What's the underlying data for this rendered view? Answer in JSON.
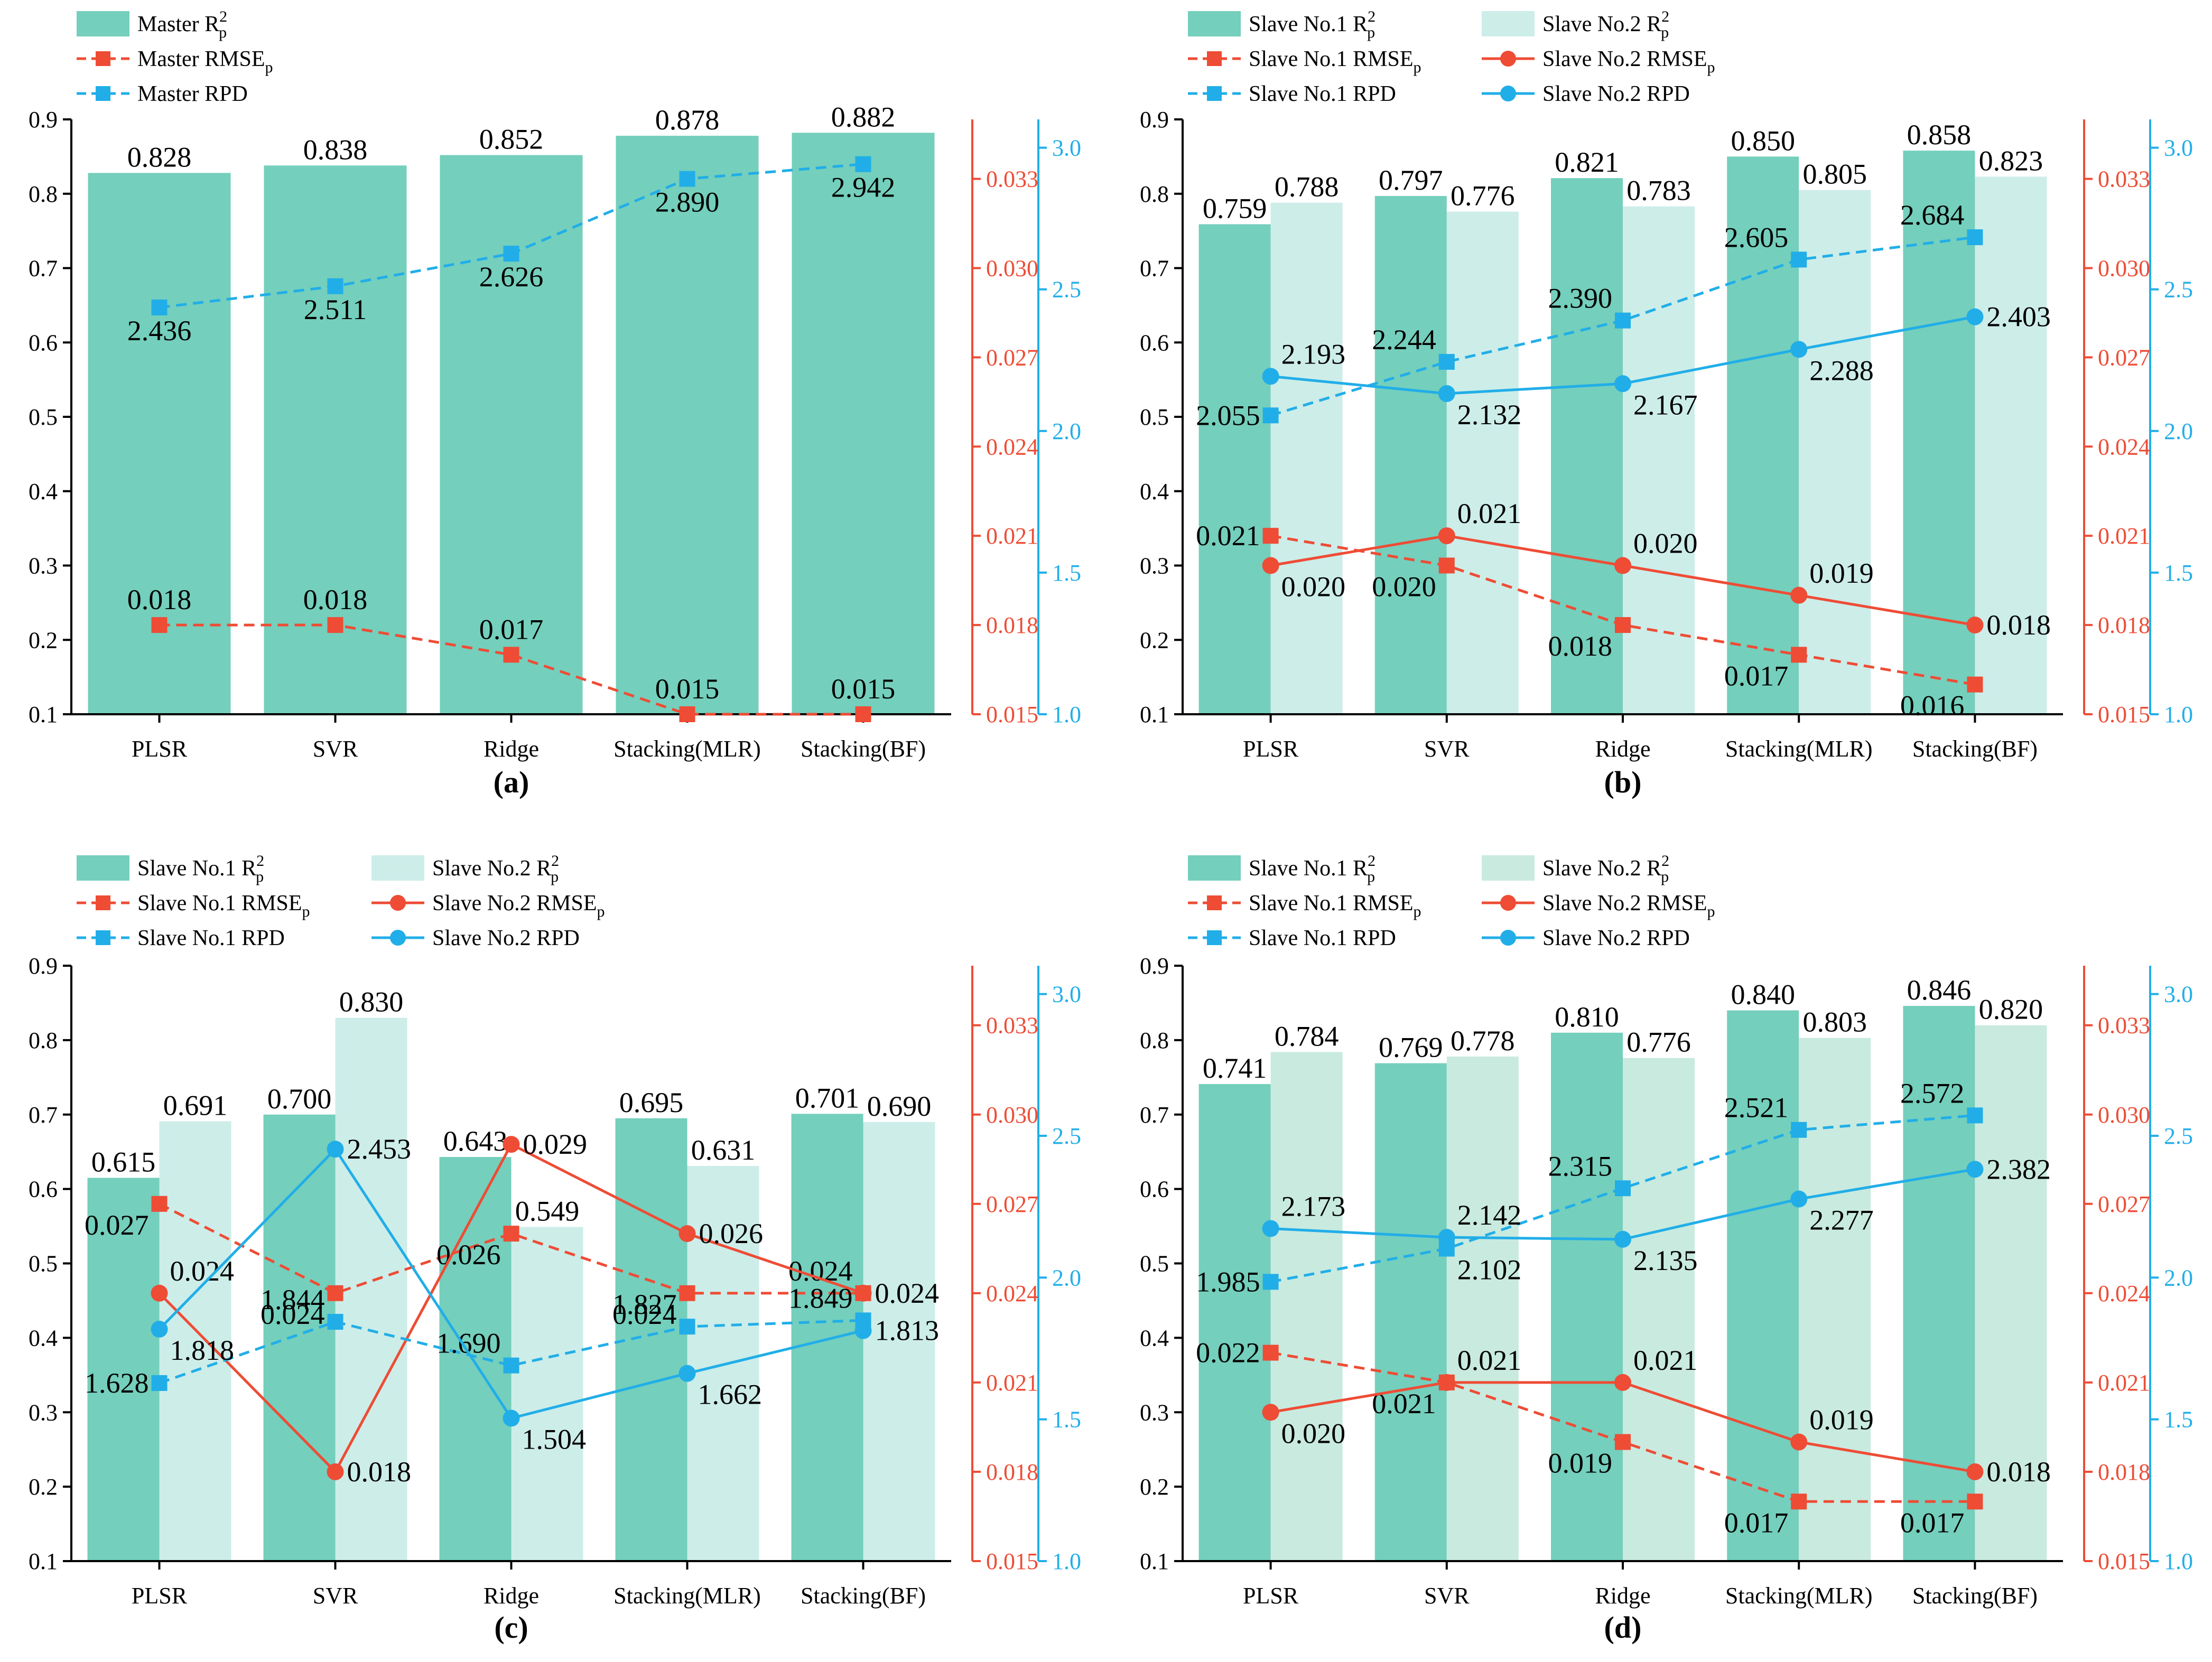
{
  "colors": {
    "teal": "#74CFBC",
    "light_b": "#CDEDE9",
    "light_d": "#C9EADF",
    "red": "#EE4C35",
    "blue": "#21AEE8",
    "axis": "#000000"
  },
  "chart_data": [
    {
      "id": "a",
      "type": "bar+line",
      "panel_label": "(a)",
      "categories": [
        "PLSR",
        "SVR",
        "Ridge",
        "Stacking(MLR)",
        "Stacking(BF)"
      ],
      "left_axis": {
        "range": [
          0.1,
          0.9
        ],
        "ticks": [
          "0.1",
          "0.2",
          "0.3",
          "0.4",
          "0.5",
          "0.6",
          "0.7",
          "0.8",
          "0.9"
        ]
      },
      "rmse_axis": {
        "range": [
          0.015,
          0.035
        ],
        "ticks": [
          "0.015",
          "0.018",
          "0.021",
          "0.024",
          "0.027",
          "0.030",
          "0.033"
        ]
      },
      "rpd_axis": {
        "range": [
          1.0,
          3.1
        ],
        "ticks": [
          "1.0",
          "1.5",
          "2.0",
          "2.5",
          "3.0"
        ]
      },
      "legend": [
        {
          "kind": "bar",
          "color_key": "teal",
          "text": "Master R",
          "sup": "2",
          "sub": "p"
        },
        {
          "kind": "dash-square",
          "color_key": "red",
          "text": "Master RMSE",
          "sup": "",
          "sub": "p"
        },
        {
          "kind": "dash-square",
          "color_key": "blue",
          "text": "Master RPD",
          "sup": "",
          "sub": ""
        }
      ],
      "bars": [
        {
          "name": "Master R2p",
          "color_key": "teal",
          "values": [
            0.828,
            0.838,
            0.852,
            0.878,
            0.882
          ],
          "labels": [
            "0.828",
            "0.838",
            "0.852",
            "0.878",
            "0.882"
          ]
        }
      ],
      "lines": [
        {
          "name": "Master RMSEp",
          "axis": "rmse",
          "color_key": "red",
          "dash": true,
          "marker": "square",
          "values": [
            0.018,
            0.018,
            0.017,
            0.015,
            0.015
          ],
          "labels": [
            "0.018",
            "0.018",
            "0.017",
            "0.015",
            "0.015"
          ],
          "label_pos": "above"
        },
        {
          "name": "Master RPD",
          "axis": "rpd",
          "color_key": "blue",
          "dash": true,
          "marker": "square",
          "values": [
            2.436,
            2.511,
            2.626,
            2.89,
            2.942
          ],
          "labels": [
            "2.436",
            "2.511",
            "2.626",
            "2.890",
            "2.942"
          ],
          "label_pos": "below"
        }
      ]
    },
    {
      "id": "b",
      "type": "bar+line",
      "panel_label": "(b)",
      "categories": [
        "PLSR",
        "SVR",
        "Ridge",
        "Stacking(MLR)",
        "Stacking(BF)"
      ],
      "left_axis": {
        "range": [
          0.1,
          0.9
        ],
        "ticks": [
          "0.1",
          "0.2",
          "0.3",
          "0.4",
          "0.5",
          "0.6",
          "0.7",
          "0.8",
          "0.9"
        ]
      },
      "rmse_axis": {
        "range": [
          0.015,
          0.035
        ],
        "ticks": [
          "0.015",
          "0.018",
          "0.021",
          "0.024",
          "0.027",
          "0.030",
          "0.033"
        ]
      },
      "rpd_axis": {
        "range": [
          1.0,
          3.1
        ],
        "ticks": [
          "1.0",
          "1.5",
          "2.0",
          "2.5",
          "3.0"
        ]
      },
      "legend": [
        {
          "kind": "bar",
          "color_key": "teal",
          "text": "Slave No.1 R",
          "sup": "2",
          "sub": "p"
        },
        {
          "kind": "bar",
          "color_key": "light_b",
          "text": "Slave No.2 R",
          "sup": "2",
          "sub": "p"
        },
        {
          "kind": "dash-square",
          "color_key": "red",
          "text": "Slave No.1 RMSE",
          "sup": "",
          "sub": "p"
        },
        {
          "kind": "solid-circle",
          "color_key": "red",
          "text": "Slave No.2 RMSE",
          "sup": "",
          "sub": "p"
        },
        {
          "kind": "dash-square",
          "color_key": "blue",
          "text": "Slave No.1 RPD",
          "sup": "",
          "sub": ""
        },
        {
          "kind": "solid-circle",
          "color_key": "blue",
          "text": "Slave No.2 RPD",
          "sup": "",
          "sub": ""
        }
      ],
      "bars": [
        {
          "name": "Slave No.1 R2p",
          "color_key": "teal",
          "values": [
            0.759,
            0.797,
            0.821,
            0.85,
            0.858
          ],
          "labels": [
            "0.759",
            "0.797",
            "0.821",
            "0.850",
            "0.858"
          ]
        },
        {
          "name": "Slave No.2 R2p",
          "color_key": "light_b",
          "values": [
            0.788,
            0.776,
            0.783,
            0.805,
            0.823
          ],
          "labels": [
            "0.788",
            "0.776",
            "0.783",
            "0.805",
            "0.823"
          ]
        }
      ],
      "lines": [
        {
          "name": "Slave No.1 RMSEp",
          "axis": "rmse",
          "color_key": "red",
          "dash": true,
          "marker": "square",
          "values": [
            0.021,
            0.02,
            0.018,
            0.017,
            0.016
          ],
          "labels": [
            "0.021",
            "0.020",
            "0.018",
            "0.017",
            "0.016"
          ],
          "label_pos": [
            "left",
            "below-left",
            "below-left",
            "below-left",
            "below-left"
          ]
        },
        {
          "name": "Slave No.2 RMSEp",
          "axis": "rmse",
          "color_key": "red",
          "dash": false,
          "marker": "circle",
          "values": [
            0.02,
            0.021,
            0.02,
            0.019,
            0.018
          ],
          "labels": [
            "0.020",
            "0.021",
            "0.020",
            "0.019",
            "0.018"
          ],
          "label_pos": [
            "below-right",
            "above-right",
            "above-right",
            "above-right",
            "right"
          ]
        },
        {
          "name": "Slave No.1 RPD",
          "axis": "rpd",
          "color_key": "blue",
          "dash": true,
          "marker": "square",
          "values": [
            2.055,
            2.244,
            2.39,
            2.605,
            2.684
          ],
          "labels": [
            "2.055",
            "2.244",
            "2.390",
            "2.605",
            "2.684"
          ],
          "label_pos": [
            "left",
            "above-left",
            "above-left",
            "above-left",
            "above-left"
          ]
        },
        {
          "name": "Slave No.2 RPD",
          "axis": "rpd",
          "color_key": "blue",
          "dash": false,
          "marker": "circle",
          "values": [
            2.193,
            2.132,
            2.167,
            2.288,
            2.403
          ],
          "labels": [
            "2.193",
            "2.132",
            "2.167",
            "2.288",
            "2.403"
          ],
          "label_pos": [
            "above-right",
            "below-right",
            "below-right",
            "below-right",
            "right"
          ]
        }
      ]
    },
    {
      "id": "c",
      "type": "bar+line",
      "panel_label": "(c)",
      "categories": [
        "PLSR",
        "SVR",
        "Ridge",
        "Stacking(MLR)",
        "Stacking(BF)"
      ],
      "left_axis": {
        "range": [
          0.1,
          0.9
        ],
        "ticks": [
          "0.1",
          "0.2",
          "0.3",
          "0.4",
          "0.5",
          "0.6",
          "0.7",
          "0.8",
          "0.9"
        ]
      },
      "rmse_axis": {
        "range": [
          0.015,
          0.035
        ],
        "ticks": [
          "0.015",
          "0.018",
          "0.021",
          "0.024",
          "0.027",
          "0.030",
          "0.033"
        ]
      },
      "rpd_axis": {
        "range": [
          1.0,
          3.1
        ],
        "ticks": [
          "1.0",
          "1.5",
          "2.0",
          "2.5",
          "3.0"
        ]
      },
      "legend": [
        {
          "kind": "bar",
          "color_key": "teal",
          "text": "Slave No.1 R",
          "sup": "2",
          "sub": "p"
        },
        {
          "kind": "bar",
          "color_key": "light_b",
          "text": "Slave No.2 R",
          "sup": "2",
          "sub": "p"
        },
        {
          "kind": "dash-square",
          "color_key": "red",
          "text": "Slave No.1 RMSE",
          "sup": "",
          "sub": "p"
        },
        {
          "kind": "solid-circle",
          "color_key": "red",
          "text": "Slave No.2 RMSE",
          "sup": "",
          "sub": "p"
        },
        {
          "kind": "dash-square",
          "color_key": "blue",
          "text": "Slave No.1 RPD",
          "sup": "",
          "sub": ""
        },
        {
          "kind": "solid-circle",
          "color_key": "blue",
          "text": "Slave No.2 RPD",
          "sup": "",
          "sub": ""
        }
      ],
      "bars": [
        {
          "name": "Slave No.1 R2p",
          "color_key": "teal",
          "values": [
            0.615,
            0.7,
            0.643,
            0.695,
            0.701
          ],
          "labels": [
            "0.615",
            "0.700",
            "0.643",
            "0.695",
            "0.701"
          ]
        },
        {
          "name": "Slave No.2 R2p",
          "color_key": "light_b",
          "values": [
            0.691,
            0.83,
            0.549,
            0.631,
            0.69
          ],
          "labels": [
            "0.691",
            "0.830",
            "0.549",
            "0.631",
            "0.690"
          ]
        }
      ],
      "lines": [
        {
          "name": "Slave No.1 RMSEp",
          "axis": "rmse",
          "color_key": "red",
          "dash": true,
          "marker": "square",
          "values": [
            0.027,
            0.024,
            0.026,
            0.024,
            0.024
          ],
          "labels": [
            "0.027",
            "0.024",
            "0.026",
            "0.024",
            "0.024"
          ],
          "label_pos": [
            "below-left",
            "below-left",
            "below-left",
            "below-left",
            "above-left"
          ]
        },
        {
          "name": "Slave No.2 RMSEp",
          "axis": "rmse",
          "color_key": "red",
          "dash": false,
          "marker": "circle",
          "values": [
            0.024,
            0.018,
            0.029,
            0.026,
            0.024
          ],
          "labels": [
            "0.024",
            "0.018",
            "0.029",
            "0.026",
            "0.024"
          ],
          "label_pos": [
            "above-right",
            "right",
            "right",
            "right",
            "right"
          ]
        },
        {
          "name": "Slave No.1 RPD",
          "axis": "rpd",
          "color_key": "blue",
          "dash": true,
          "marker": "square",
          "values": [
            1.628,
            1.844,
            1.69,
            1.827,
            1.849
          ],
          "labels": [
            "1.628",
            "1.844",
            "1.690",
            "1.827",
            "1.849"
          ],
          "label_pos": [
            "left",
            "above-left",
            "above-left",
            "above-left",
            "above-left"
          ]
        },
        {
          "name": "Slave No.2 RPD",
          "axis": "rpd",
          "color_key": "blue",
          "dash": false,
          "marker": "circle",
          "values": [
            1.818,
            2.453,
            1.504,
            1.662,
            1.813
          ],
          "labels": [
            "1.818",
            "2.453",
            "1.504",
            "1.662",
            "1.813"
          ],
          "label_pos": [
            "below-right",
            "right",
            "below-right",
            "below-right",
            "right"
          ]
        }
      ]
    },
    {
      "id": "d",
      "type": "bar+line",
      "panel_label": "(d)",
      "categories": [
        "PLSR",
        "SVR",
        "Ridge",
        "Stacking(MLR)",
        "Stacking(BF)"
      ],
      "left_axis": {
        "range": [
          0.1,
          0.9
        ],
        "ticks": [
          "0.1",
          "0.2",
          "0.3",
          "0.4",
          "0.5",
          "0.6",
          "0.7",
          "0.8",
          "0.9"
        ]
      },
      "rmse_axis": {
        "range": [
          0.015,
          0.035
        ],
        "ticks": [
          "0.015",
          "0.018",
          "0.021",
          "0.024",
          "0.027",
          "0.030",
          "0.033"
        ]
      },
      "rpd_axis": {
        "range": [
          1.0,
          3.1
        ],
        "ticks": [
          "1.0",
          "1.5",
          "2.0",
          "2.5",
          "3.0"
        ]
      },
      "legend": [
        {
          "kind": "bar",
          "color_key": "teal",
          "text": "Slave No.1 R",
          "sup": "2",
          "sub": "p"
        },
        {
          "kind": "bar",
          "color_key": "light_d",
          "text": "Slave No.2 R",
          "sup": "2",
          "sub": "p"
        },
        {
          "kind": "dash-square",
          "color_key": "red",
          "text": "Slave No.1 RMSE",
          "sup": "",
          "sub": "p"
        },
        {
          "kind": "solid-circle",
          "color_key": "red",
          "text": "Slave No.2 RMSE",
          "sup": "",
          "sub": "p"
        },
        {
          "kind": "dash-square",
          "color_key": "blue",
          "text": "Slave No.1 RPD",
          "sup": "",
          "sub": ""
        },
        {
          "kind": "solid-circle",
          "color_key": "blue",
          "text": "Slave No.2 RPD",
          "sup": "",
          "sub": ""
        }
      ],
      "bars": [
        {
          "name": "Slave No.1 R2p",
          "color_key": "teal",
          "values": [
            0.741,
            0.769,
            0.81,
            0.84,
            0.846
          ],
          "labels": [
            "0.741",
            "0.769",
            "0.810",
            "0.840",
            "0.846"
          ]
        },
        {
          "name": "Slave No.2 R2p",
          "color_key": "light_d",
          "values": [
            0.784,
            0.778,
            0.776,
            0.803,
            0.82
          ],
          "labels": [
            "0.784",
            "0.778",
            "0.776",
            "0.803",
            "0.820"
          ]
        }
      ],
      "lines": [
        {
          "name": "Slave No.1 RMSEp",
          "axis": "rmse",
          "color_key": "red",
          "dash": true,
          "marker": "square",
          "values": [
            0.022,
            0.021,
            0.019,
            0.017,
            0.017
          ],
          "labels": [
            "0.022",
            "0.021",
            "0.019",
            "0.017",
            "0.017"
          ],
          "label_pos": [
            "left",
            "below-left",
            "below-left",
            "below-left",
            "below-left"
          ]
        },
        {
          "name": "Slave No.2 RMSEp",
          "axis": "rmse",
          "color_key": "red",
          "dash": false,
          "marker": "circle",
          "values": [
            0.02,
            0.021,
            0.021,
            0.019,
            0.018
          ],
          "labels": [
            "0.020",
            "0.021",
            "0.021",
            "0.019",
            "0.018"
          ],
          "label_pos": [
            "below-right",
            "above-right",
            "above-right",
            "above-right",
            "right"
          ]
        },
        {
          "name": "Slave No.1 RPD",
          "axis": "rpd",
          "color_key": "blue",
          "dash": true,
          "marker": "square",
          "values": [
            1.985,
            2.102,
            2.315,
            2.521,
            2.572
          ],
          "labels": [
            "1.985",
            "2.102",
            "2.315",
            "2.521",
            "2.572"
          ],
          "label_pos": [
            "left",
            "below-right",
            "above-left",
            "above-left",
            "above-left"
          ]
        },
        {
          "name": "Slave No.2 RPD",
          "axis": "rpd",
          "color_key": "blue",
          "dash": false,
          "marker": "circle",
          "values": [
            2.173,
            2.142,
            2.135,
            2.277,
            2.382
          ],
          "labels": [
            "2.173",
            "2.142",
            "2.135",
            "2.277",
            "2.382"
          ],
          "label_pos": [
            "above-right",
            "above-right",
            "below-right",
            "below-right",
            "right"
          ]
        }
      ]
    }
  ]
}
